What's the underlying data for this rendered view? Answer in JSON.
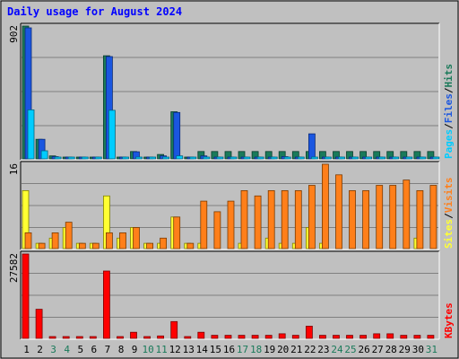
{
  "chart_data": {
    "type": "bar",
    "title": "Daily usage for August 2024",
    "x": [
      1,
      2,
      3,
      4,
      5,
      6,
      7,
      8,
      9,
      10,
      11,
      12,
      13,
      14,
      15,
      16,
      17,
      18,
      19,
      20,
      21,
      22,
      23,
      24,
      25,
      26,
      27,
      28,
      29,
      30,
      31
    ],
    "weekend_days": [
      3,
      4,
      10,
      11,
      17,
      18,
      24,
      25,
      31
    ],
    "colors": {
      "hits": "#1a7a5a",
      "files": "#1a56e0",
      "pages": "#00ccff",
      "visits": "#ff7f1a",
      "sites": "#ffff33",
      "kbytes": "#ff0000",
      "weekday_label": "#000000",
      "weekend_label": "#1a7a5a",
      "title": "#0000ff",
      "plot_bg": "#c0c0c0"
    },
    "panels": [
      {
        "max_label": "902",
        "ylim": [
          0,
          902
        ],
        "legend": [
          {
            "label": "Hits",
            "color": "#1a7a5a"
          },
          {
            "label": "/",
            "color": "#000000"
          },
          {
            "label": "Files",
            "color": "#1a56e0"
          },
          {
            "label": "/",
            "color": "#000000"
          },
          {
            "label": "Pages",
            "color": "#00ccff"
          }
        ],
        "series": [
          {
            "name": "Hits",
            "key": "hits",
            "offset": 0,
            "values": [
              902,
              133,
              20,
              8,
              6,
              6,
              700,
              6,
              50,
              6,
              30,
              320,
              6,
              50,
              50,
              50,
              50,
              50,
              50,
              50,
              50,
              50,
              50,
              50,
              50,
              50,
              50,
              50,
              50,
              50,
              50
            ]
          },
          {
            "name": "Files",
            "key": "files",
            "offset": 1,
            "values": [
              890,
              133,
              15,
              6,
              4,
              4,
              695,
              6,
              48,
              4,
              20,
              315,
              4,
              20,
              6,
              6,
              6,
              6,
              6,
              15,
              10,
              170,
              6,
              6,
              6,
              6,
              6,
              6,
              6,
              6,
              6
            ]
          },
          {
            "name": "Pages",
            "key": "pages",
            "offset": 2,
            "values": [
              333,
              55,
              4,
              2,
              1,
              2,
              330,
              2,
              3,
              1,
              8,
              20,
              1,
              3,
              1,
              1,
              1,
              1,
              1,
              2,
              1,
              6,
              1,
              1,
              1,
              1,
              1,
              1,
              1,
              1,
              1
            ]
          }
        ]
      },
      {
        "max_label": "16",
        "ylim": [
          0,
          16
        ],
        "legend": [
          {
            "label": "Visits",
            "color": "#ff7f1a"
          },
          {
            "label": "/",
            "color": "#000000"
          },
          {
            "label": "Sites",
            "color": "#ffff33"
          }
        ],
        "series": [
          {
            "name": "Sites",
            "key": "sites",
            "offset": 0,
            "values": [
              11,
              1,
              2,
              4,
              1,
              1,
              10,
              2,
              4,
              1,
              1,
              6,
              1,
              1,
              0,
              0,
              1,
              0,
              2,
              1,
              1,
              4,
              1,
              0,
              0,
              0,
              0,
              0,
              0,
              2,
              0
            ]
          },
          {
            "name": "Visits",
            "key": "visits",
            "offset": 1,
            "values": [
              3,
              1,
              3,
              5,
              1,
              1,
              3,
              3,
              4,
              1,
              2,
              6,
              1,
              9,
              7,
              9,
              11,
              10,
              11,
              11,
              11,
              12,
              16,
              14,
              11,
              11,
              12,
              12,
              13,
              11,
              12
            ]
          }
        ]
      },
      {
        "max_label": "27582",
        "ylim": [
          0,
          27582
        ],
        "legend": [
          {
            "label": "KBytes",
            "color": "#ff0000"
          }
        ],
        "series": [
          {
            "name": "KBytes",
            "key": "kbytes",
            "offset": 0,
            "values": [
              27582,
              9500,
              500,
              500,
              500,
              300,
              22000,
              300,
              2000,
              300,
              800,
              5500,
              300,
              2000,
              1000,
              1000,
              1000,
              1000,
              1000,
              1500,
              1000,
              4000,
              1000,
              1000,
              1000,
              1000,
              1500,
              1500,
              1000,
              1000,
              1000
            ]
          }
        ]
      }
    ]
  }
}
